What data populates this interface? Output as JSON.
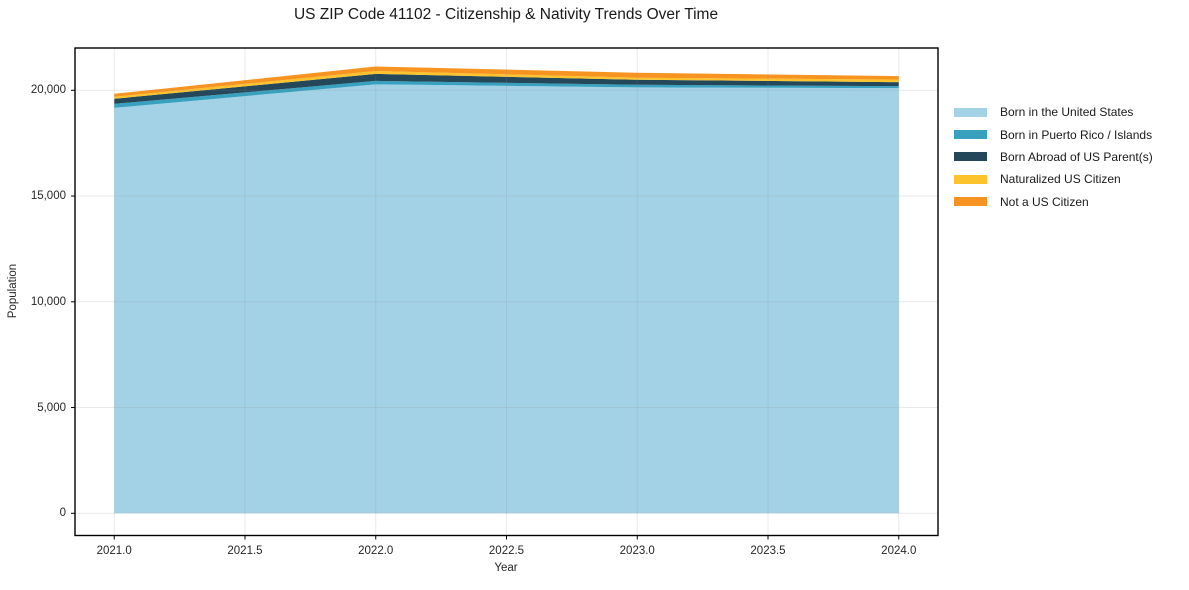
{
  "chart_data": {
    "type": "area",
    "stacked": true,
    "title": "US ZIP Code 41102 - Citizenship & Nativity Trends Over Time",
    "xlabel": "Year",
    "ylabel": "Population",
    "x": [
      2021,
      2022,
      2023,
      2024
    ],
    "series": [
      {
        "name": "Born in the United States",
        "color": "#a3d2e7",
        "values": [
          19170,
          20280,
          20140,
          20100
        ]
      },
      {
        "name": "Born in Puerto Rico / Islands",
        "color": "#38a1bf",
        "values": [
          190,
          165,
          120,
          95
        ]
      },
      {
        "name": "Born Abroad of US Parent(s)",
        "color": "#24485a",
        "values": [
          240,
          330,
          240,
          190
        ]
      },
      {
        "name": "Naturalized US Citizen",
        "color": "#fcc32d",
        "values": [
          95,
          140,
          95,
          120
        ]
      },
      {
        "name": "Not a US Citizen",
        "color": "#f79421",
        "values": [
          140,
          210,
          235,
          165
        ]
      }
    ],
    "xlim": [
      2020.85,
      2024.15
    ],
    "ylim": [
      -1050,
      22000
    ],
    "x_ticks": [
      2021.0,
      2021.5,
      2022.0,
      2022.5,
      2023.0,
      2023.5,
      2024.0
    ],
    "x_tick_labels": [
      "2021.0",
      "2021.5",
      "2022.0",
      "2022.5",
      "2023.0",
      "2023.5",
      "2024.0"
    ],
    "y_ticks": [
      0,
      5000,
      10000,
      15000,
      20000
    ],
    "y_tick_labels": [
      "0",
      "5,000",
      "10,000",
      "15,000",
      "20,000"
    ],
    "grid": true,
    "legend_position": "right-outside",
    "spine_color": "#000000",
    "grid_color": "#8a8a8a"
  }
}
